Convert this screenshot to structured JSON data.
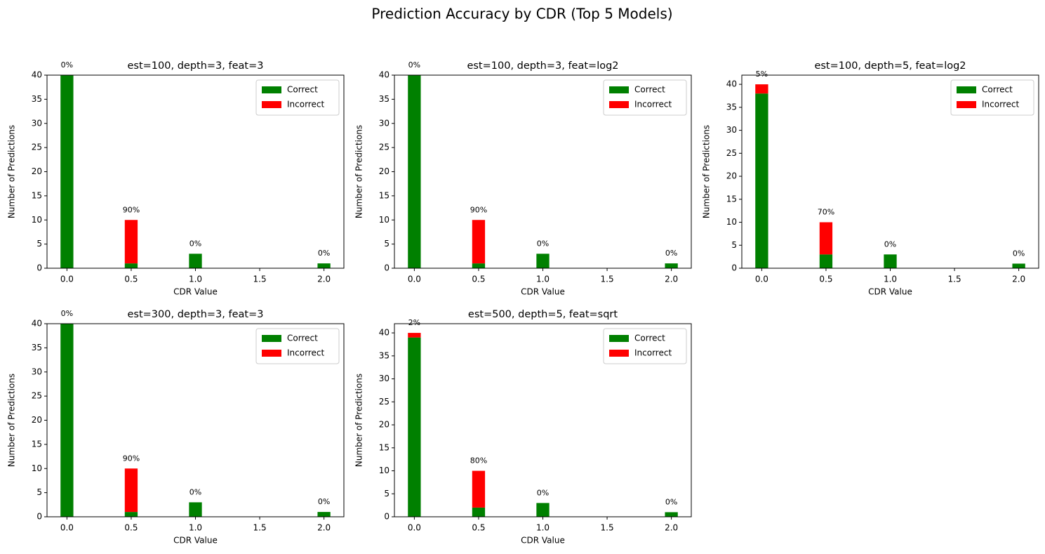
{
  "title": "Prediction Accuracy by CDR (Top 5 Models)",
  "chart_data": [
    {
      "type": "bar",
      "stacked": true,
      "title": "est=100, depth=3, feat=3",
      "xlabel": "CDR Value",
      "ylabel": "Number of Predictions",
      "x": [
        0,
        0.5,
        1,
        2
      ],
      "series": [
        {
          "name": "Correct",
          "color": "#008000",
          "values": [
            40,
            1,
            3,
            1
          ]
        },
        {
          "name": "Incorrect",
          "color": "#ff0000",
          "values": [
            0,
            9,
            0,
            0
          ]
        }
      ],
      "annotations": [
        {
          "value": 0,
          "label": "0%"
        },
        {
          "value": 90,
          "label": "90%"
        },
        {
          "value": 0,
          "label": "0%"
        },
        {
          "value": 0,
          "label": "0%"
        }
      ],
      "xlim": [
        -0.155,
        2.155
      ],
      "xticks": [
        {
          "value": 0,
          "label": "0.0"
        },
        {
          "value": 0.5,
          "label": "0.5"
        },
        {
          "value": 1,
          "label": "1.0"
        },
        {
          "value": 1.5,
          "label": "1.5"
        },
        {
          "value": 2,
          "label": "2.0"
        }
      ],
      "ylim": [
        0,
        40
      ],
      "yticks": [
        0,
        5,
        10,
        15,
        20,
        25,
        30,
        35,
        40
      ],
      "legend": "upper right"
    },
    {
      "type": "bar",
      "stacked": true,
      "title": "est=100, depth=3, feat=log2",
      "xlabel": "CDR Value",
      "ylabel": "Number of Predictions",
      "x": [
        0,
        0.5,
        1,
        2
      ],
      "series": [
        {
          "name": "Correct",
          "color": "#008000",
          "values": [
            40,
            1,
            3,
            1
          ]
        },
        {
          "name": "Incorrect",
          "color": "#ff0000",
          "values": [
            0,
            9,
            0,
            0
          ]
        }
      ],
      "annotations": [
        {
          "value": 0,
          "label": "0%"
        },
        {
          "value": 90,
          "label": "90%"
        },
        {
          "value": 0,
          "label": "0%"
        },
        {
          "value": 0,
          "label": "0%"
        }
      ],
      "xlim": [
        -0.155,
        2.155
      ],
      "xticks": [
        {
          "value": 0,
          "label": "0.0"
        },
        {
          "value": 0.5,
          "label": "0.5"
        },
        {
          "value": 1,
          "label": "1.0"
        },
        {
          "value": 1.5,
          "label": "1.5"
        },
        {
          "value": 2,
          "label": "2.0"
        }
      ],
      "ylim": [
        0,
        40
      ],
      "yticks": [
        0,
        5,
        10,
        15,
        20,
        25,
        30,
        35,
        40
      ],
      "legend": "upper right"
    },
    {
      "type": "bar",
      "stacked": true,
      "title": "est=100, depth=5, feat=log2",
      "xlabel": "CDR Value",
      "ylabel": "Number of Predictions",
      "x": [
        0,
        0.5,
        1,
        2
      ],
      "series": [
        {
          "name": "Correct",
          "color": "#008000",
          "values": [
            38,
            3,
            3,
            1
          ]
        },
        {
          "name": "Incorrect",
          "color": "#ff0000",
          "values": [
            2,
            7,
            0,
            0
          ]
        }
      ],
      "annotations": [
        {
          "value": 5,
          "label": "5%"
        },
        {
          "value": 70,
          "label": "70%"
        },
        {
          "value": 0,
          "label": "0%"
        },
        {
          "value": 0,
          "label": "0%"
        }
      ],
      "xlim": [
        -0.155,
        2.155
      ],
      "xticks": [
        {
          "value": 0,
          "label": "0.0"
        },
        {
          "value": 0.5,
          "label": "0.5"
        },
        {
          "value": 1,
          "label": "1.0"
        },
        {
          "value": 1.5,
          "label": "1.5"
        },
        {
          "value": 2,
          "label": "2.0"
        }
      ],
      "ylim": [
        0,
        42
      ],
      "yticks": [
        0,
        5,
        10,
        15,
        20,
        25,
        30,
        35,
        40
      ],
      "legend": "upper right"
    },
    {
      "type": "bar",
      "stacked": true,
      "title": "est=300, depth=3, feat=3",
      "xlabel": "CDR Value",
      "ylabel": "Number of Predictions",
      "x": [
        0,
        0.5,
        1,
        2
      ],
      "series": [
        {
          "name": "Correct",
          "color": "#008000",
          "values": [
            40,
            1,
            3,
            1
          ]
        },
        {
          "name": "Incorrect",
          "color": "#ff0000",
          "values": [
            0,
            9,
            0,
            0
          ]
        }
      ],
      "annotations": [
        {
          "value": 0,
          "label": "0%"
        },
        {
          "value": 90,
          "label": "90%"
        },
        {
          "value": 0,
          "label": "0%"
        },
        {
          "value": 0,
          "label": "0%"
        }
      ],
      "xlim": [
        -0.155,
        2.155
      ],
      "xticks": [
        {
          "value": 0,
          "label": "0.0"
        },
        {
          "value": 0.5,
          "label": "0.5"
        },
        {
          "value": 1,
          "label": "1.0"
        },
        {
          "value": 1.5,
          "label": "1.5"
        },
        {
          "value": 2,
          "label": "2.0"
        }
      ],
      "ylim": [
        0,
        40
      ],
      "yticks": [
        0,
        5,
        10,
        15,
        20,
        25,
        30,
        35,
        40
      ],
      "legend": "upper right"
    },
    {
      "type": "bar",
      "stacked": true,
      "title": "est=500, depth=5, feat=sqrt",
      "xlabel": "CDR Value",
      "ylabel": "Number of Predictions",
      "x": [
        0,
        0.5,
        1,
        2
      ],
      "series": [
        {
          "name": "Correct",
          "color": "#008000",
          "values": [
            39,
            2,
            3,
            1
          ]
        },
        {
          "name": "Incorrect",
          "color": "#ff0000",
          "values": [
            1,
            8,
            0,
            0
          ]
        }
      ],
      "annotations": [
        {
          "value": 2,
          "label": "2%"
        },
        {
          "value": 80,
          "label": "80%"
        },
        {
          "value": 0,
          "label": "0%"
        },
        {
          "value": 0,
          "label": "0%"
        }
      ],
      "xlim": [
        -0.155,
        2.155
      ],
      "xticks": [
        {
          "value": 0,
          "label": "0.0"
        },
        {
          "value": 0.5,
          "label": "0.5"
        },
        {
          "value": 1,
          "label": "1.0"
        },
        {
          "value": 1.5,
          "label": "1.5"
        },
        {
          "value": 2,
          "label": "2.0"
        }
      ],
      "ylim": [
        0,
        42
      ],
      "yticks": [
        0,
        5,
        10,
        15,
        20,
        25,
        30,
        35,
        40
      ],
      "legend": "upper right"
    }
  ]
}
